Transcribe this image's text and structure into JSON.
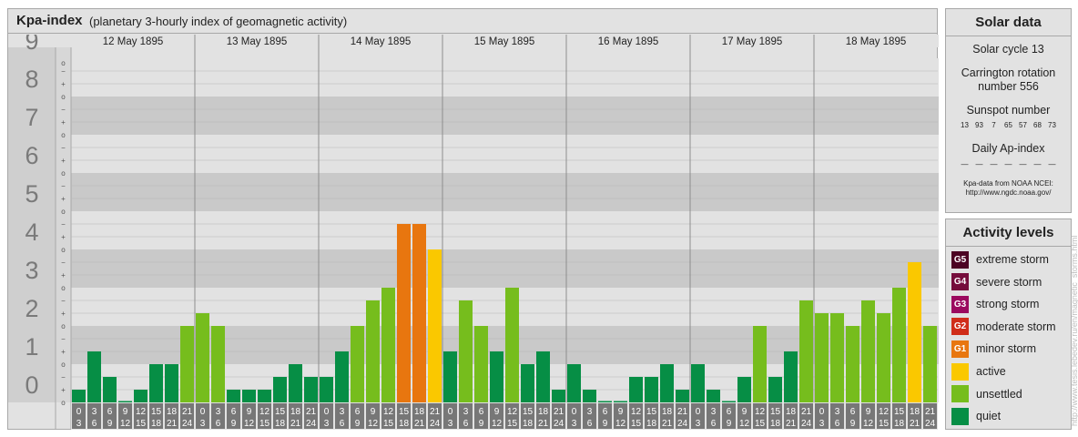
{
  "header": {
    "title": "Kpa-index",
    "subtitle": "(planetary 3-hourly index of geomagnetic activity)"
  },
  "chart_data": {
    "type": "bar",
    "title": "Kpa-index",
    "subtitle": "(planetary 3-hourly index of geomagnetic activity)",
    "ylim": [
      0,
      9
    ],
    "y_ticks": [
      "0",
      "1",
      "2",
      "3",
      "4",
      "5",
      "6",
      "7",
      "8",
      "9"
    ],
    "y_minor_ticks": [
      "o",
      "+",
      "−"
    ],
    "days": [
      "12 May 1895",
      "13 May 1895",
      "14 May 1895",
      "15 May 1895",
      "16 May 1895",
      "17 May 1895",
      "18 May 1895"
    ],
    "interval_labels": [
      [
        "0",
        "3"
      ],
      [
        "3",
        "6"
      ],
      [
        "6",
        "9"
      ],
      [
        "9",
        "12"
      ],
      [
        "12",
        "15"
      ],
      [
        "15",
        "18"
      ],
      [
        "18",
        "21"
      ],
      [
        "21",
        "24"
      ]
    ],
    "values": [
      [
        0.333,
        1.333,
        0.667,
        0.0,
        0.333,
        1.0,
        1.0,
        2.0
      ],
      [
        2.333,
        2.0,
        0.333,
        0.333,
        0.333,
        0.667,
        1.0,
        0.667
      ],
      [
        0.667,
        1.333,
        2.0,
        2.667,
        3.0,
        4.667,
        4.667,
        4.0
      ],
      [
        1.333,
        2.667,
        2.0,
        1.333,
        3.0,
        1.0,
        1.333,
        0.333
      ],
      [
        1.0,
        0.333,
        0.0,
        0.0,
        0.667,
        0.667,
        1.0,
        0.333
      ],
      [
        1.0,
        0.333,
        0.0,
        0.667,
        2.0,
        0.667,
        1.333,
        2.667
      ],
      [
        2.333,
        2.333,
        2.0,
        2.667,
        2.333,
        3.0,
        3.667,
        2.0
      ]
    ],
    "level_colors": {
      "quiet": "#068e45",
      "unsettled": "#76bd1d",
      "active": "#fac800",
      "minor_storm": "#e8760f",
      "moderate_storm": "#d02d1a",
      "strong_storm": "#9b0a5f",
      "severe_storm": "#750c3b",
      "extreme_storm": "#4c0423"
    }
  },
  "solar_data": {
    "title": "Solar data",
    "solar_cycle": "Solar cycle 13",
    "carrington_line1": "Carrington rotation",
    "carrington_line2": "number 556",
    "sunspot_title": "Sunspot number",
    "sunspot_values": [
      "13",
      "93",
      "7",
      "65",
      "57",
      "68",
      "73"
    ],
    "ap_title": "Daily Ap-index",
    "ap_values": [
      "—",
      "—",
      "—",
      "—",
      "—",
      "—",
      "—"
    ],
    "source_line1": "Kpa-data from NOAA NCEI:",
    "source_line2": "http://www.ngdc.noaa.gov/"
  },
  "activity_levels": {
    "title": "Activity levels",
    "items": [
      {
        "code": "G5",
        "label": "extreme storm",
        "color": "#4c0423"
      },
      {
        "code": "G4",
        "label": "severe storm",
        "color": "#750c3b"
      },
      {
        "code": "G3",
        "label": "strong storm",
        "color": "#9b0a5f"
      },
      {
        "code": "G2",
        "label": "moderate storm",
        "color": "#d02d1a"
      },
      {
        "code": "G1",
        "label": "minor storm",
        "color": "#e8760f"
      },
      {
        "code": "",
        "label": "active",
        "color": "#fac800"
      },
      {
        "code": "",
        "label": "unsettled",
        "color": "#76bd1d"
      },
      {
        "code": "",
        "label": "quiet",
        "color": "#068e45"
      }
    ]
  },
  "watermark": "http://www.tesis.lebedev.ru/en/magnetic_storms.html"
}
